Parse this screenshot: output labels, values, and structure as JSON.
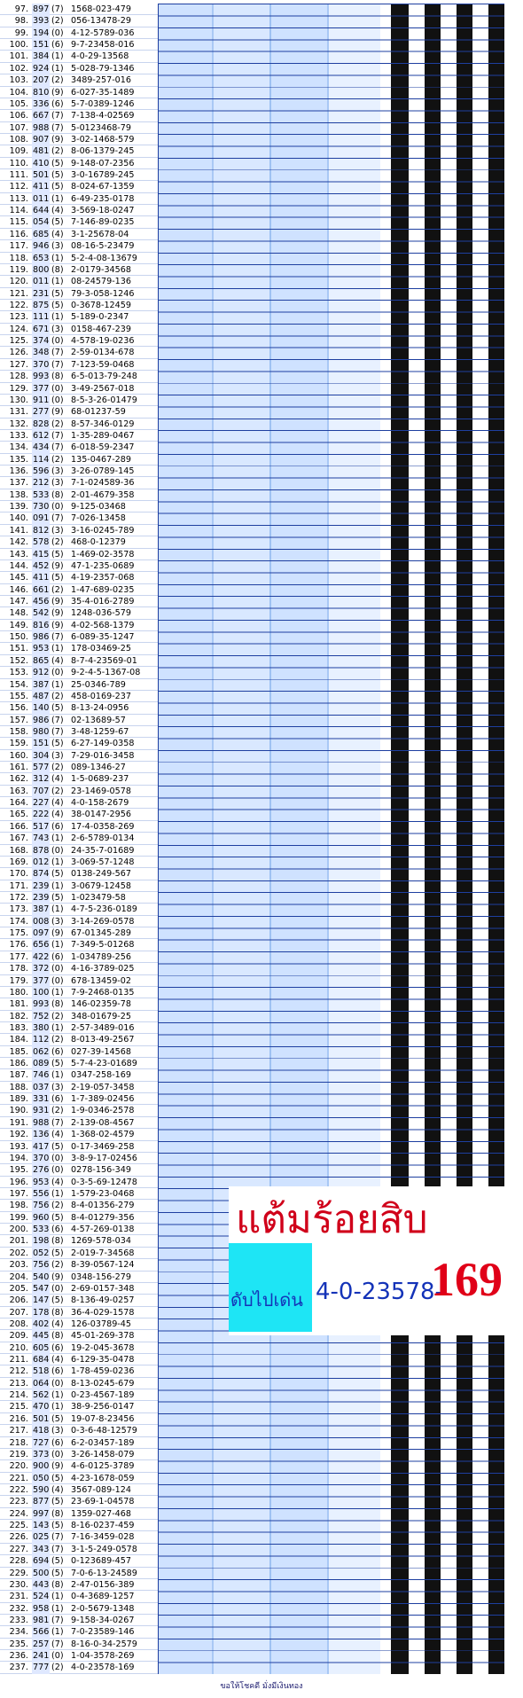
{
  "rows": [
    [
      "97.",
      "897",
      "(7)",
      "1568-023-479"
    ],
    [
      "98.",
      "393",
      "(2)",
      "056-13478-29"
    ],
    [
      "99.",
      "194",
      "(0)",
      "4-12-5789-036"
    ],
    [
      "100.",
      "151",
      "(6)",
      "9-7-23458-016"
    ],
    [
      "101.",
      "384",
      "(1)",
      "4-0-29-13568"
    ],
    [
      "102.",
      "924",
      "(1)",
      "5-028-79-1346"
    ],
    [
      "103.",
      "207",
      "(2)",
      "3489-257-016"
    ],
    [
      "104.",
      "810",
      "(9)",
      "6-027-35-1489"
    ],
    [
      "105.",
      "336",
      "(6)",
      "5-7-0389-1246"
    ],
    [
      "106.",
      "667",
      "(7)",
      "7-138-4-02569"
    ],
    [
      "107.",
      "988",
      "(7)",
      "5-0123468-79"
    ],
    [
      "108.",
      "907",
      "(9)",
      "3-02-1468-579"
    ],
    [
      "109.",
      "481",
      "(2)",
      "8-06-1379-245"
    ],
    [
      "110.",
      "410",
      "(5)",
      "9-148-07-2356"
    ],
    [
      "111.",
      "501",
      "(5)",
      "3-0-16789-245"
    ],
    [
      "112.",
      "411",
      "(5)",
      "8-024-67-1359"
    ],
    [
      "113.",
      "011",
      "(1)",
      "6-49-235-0178"
    ],
    [
      "114.",
      "644",
      "(4)",
      "3-569-18-0247"
    ],
    [
      "115.",
      "054",
      "(5)",
      "7-146-89-0235"
    ],
    [
      "116.",
      "685",
      "(4)",
      "3-1-25678-04"
    ],
    [
      "117.",
      "946",
      "(3)",
      "08-16-5-23479"
    ],
    [
      "118.",
      "653",
      "(1)",
      "5-2-4-08-13679"
    ],
    [
      "119.",
      "800",
      "(8)",
      "2-0179-34568"
    ],
    [
      "120.",
      "011",
      "(1)",
      "08-24579-136"
    ],
    [
      "121.",
      "231",
      "(5)",
      "79-3-058-1246"
    ],
    [
      "122.",
      "875",
      "(5)",
      "0-3678-12459"
    ],
    [
      "123.",
      "111",
      "(1)",
      "5-189-0-2347"
    ],
    [
      "124.",
      "671",
      "(3)",
      "0158-467-239"
    ],
    [
      "125.",
      "374",
      "(0)",
      "4-578-19-0236"
    ],
    [
      "126.",
      "348",
      "(7)",
      "2-59-0134-678"
    ],
    [
      "127.",
      "370",
      "(7)",
      "7-123-59-0468"
    ],
    [
      "128.",
      "993",
      "(8)",
      "6-5-013-79-248"
    ],
    [
      "129.",
      "377",
      "(0)",
      "3-49-2567-018"
    ],
    [
      "130.",
      "911",
      "(0)",
      "8-5-3-26-01479"
    ],
    [
      "131.",
      "277",
      "(9)",
      "68-01237-59"
    ],
    [
      "132.",
      "828",
      "(2)",
      "8-57-346-0129"
    ],
    [
      "133.",
      "612",
      "(7)",
      "1-35-289-0467"
    ],
    [
      "134.",
      "434",
      "(7)",
      "6-018-59-2347"
    ],
    [
      "135.",
      "114",
      "(2)",
      "135-0467-289"
    ],
    [
      "136.",
      "596",
      "(3)",
      "3-26-0789-145"
    ],
    [
      "137.",
      "212",
      "(3)",
      "7-1-024589-36"
    ],
    [
      "138.",
      "533",
      "(8)",
      "2-01-4679-358"
    ],
    [
      "139.",
      "730",
      "(0)",
      "9-125-03468"
    ],
    [
      "140.",
      "091",
      "(7)",
      "7-026-13458"
    ],
    [
      "141.",
      "812",
      "(3)",
      "3-16-0245-789"
    ],
    [
      "142.",
      "578",
      "(2)",
      "468-0-12379"
    ],
    [
      "143.",
      "415",
      "(5)",
      "1-469-02-3578"
    ],
    [
      "144.",
      "452",
      "(9)",
      "47-1-235-0689"
    ],
    [
      "145.",
      "411",
      "(5)",
      "4-19-2357-068"
    ],
    [
      "146.",
      "661",
      "(2)",
      "1-47-689-0235"
    ],
    [
      "147.",
      "456",
      "(9)",
      "35-4-016-2789"
    ],
    [
      "148.",
      "542",
      "(9)",
      "1248-036-579"
    ],
    [
      "149.",
      "816",
      "(9)",
      "4-02-568-1379"
    ],
    [
      "150.",
      "986",
      "(7)",
      "6-089-35-1247"
    ],
    [
      "151.",
      "953",
      "(1)",
      "178-03469-25"
    ],
    [
      "152.",
      "865",
      "(4)",
      "8-7-4-23569-01"
    ],
    [
      "153.",
      "912",
      "(0)",
      "9-2-4-5-1367-08"
    ],
    [
      "154.",
      "387",
      "(1)",
      "25-0346-789"
    ],
    [
      "155.",
      "487",
      "(2)",
      "458-0169-237"
    ],
    [
      "156.",
      "140",
      "(5)",
      "8-13-24-0956"
    ],
    [
      "157.",
      "986",
      "(7)",
      "02-13689-57"
    ],
    [
      "158.",
      "980",
      "(7)",
      "3-48-1259-67"
    ],
    [
      "159.",
      "151",
      "(5)",
      "6-27-149-0358"
    ],
    [
      "160.",
      "304",
      "(3)",
      "7-29-016-3458"
    ],
    [
      "161.",
      "577",
      "(2)",
      "089-1346-27"
    ],
    [
      "162.",
      "312",
      "(4)",
      "1-5-0689-237"
    ],
    [
      "163.",
      "707",
      "(2)",
      "23-1469-0578"
    ],
    [
      "164.",
      "227",
      "(4)",
      "4-0-158-2679"
    ],
    [
      "165.",
      "222",
      "(4)",
      "38-0147-2956"
    ],
    [
      "166.",
      "517",
      "(6)",
      "17-4-0358-269"
    ],
    [
      "167.",
      "743",
      "(1)",
      "2-6-5789-0134"
    ],
    [
      "168.",
      "878",
      "(0)",
      "24-35-7-01689"
    ],
    [
      "169.",
      "012",
      "(1)",
      "3-069-57-1248"
    ],
    [
      "170.",
      "874",
      "(5)",
      "0138-249-567"
    ],
    [
      "171.",
      "239",
      "(1)",
      "3-0679-12458"
    ],
    [
      "172.",
      "239",
      "(5)",
      "1-023479-58"
    ],
    [
      "173.",
      "387",
      "(1)",
      "4-7-5-236-0189"
    ],
    [
      "174.",
      "008",
      "(3)",
      "3-14-269-0578"
    ],
    [
      "175.",
      "097",
      "(9)",
      "67-01345-289"
    ],
    [
      "176.",
      "656",
      "(1)",
      "7-349-5-01268"
    ],
    [
      "177.",
      "422",
      "(6)",
      "1-034789-256"
    ],
    [
      "178.",
      "372",
      "(0)",
      "4-16-3789-025"
    ],
    [
      "179.",
      "377",
      "(0)",
      "678-13459-02"
    ],
    [
      "180.",
      "100",
      "(1)",
      "7-9-2468-0135"
    ],
    [
      "181.",
      "993",
      "(8)",
      "146-02359-78"
    ],
    [
      "182.",
      "752",
      "(2)",
      "348-01679-25"
    ],
    [
      "183.",
      "380",
      "(1)",
      "2-57-3489-016"
    ],
    [
      "184.",
      "112",
      "(2)",
      "8-013-49-2567"
    ],
    [
      "185.",
      "062",
      "(6)",
      "027-39-14568"
    ],
    [
      "186.",
      "089",
      "(5)",
      "5-7-4-23-01689"
    ],
    [
      "187.",
      "746",
      "(1)",
      "0347-258-169"
    ],
    [
      "188.",
      "037",
      "(3)",
      "2-19-057-3458"
    ],
    [
      "189.",
      "331",
      "(6)",
      "1-7-389-02456"
    ],
    [
      "190.",
      "931",
      "(2)",
      "1-9-0346-2578"
    ],
    [
      "191.",
      "988",
      "(7)",
      "2-139-08-4567"
    ],
    [
      "192.",
      "136",
      "(4)",
      "1-368-02-4579"
    ],
    [
      "193.",
      "417",
      "(5)",
      "0-17-3469-258"
    ],
    [
      "194.",
      "370",
      "(0)",
      "3-8-9-17-02456"
    ],
    [
      "195.",
      "276",
      "(0)",
      "0278-156-349"
    ],
    [
      "196.",
      "953",
      "(4)",
      "0-3-5-69-12478"
    ],
    [
      "197.",
      "556",
      "(1)",
      "1-579-23-0468"
    ],
    [
      "198.",
      "756",
      "(2)",
      "8-4-01356-279"
    ],
    [
      "199.",
      "960",
      "(5)",
      "8-4-01279-356"
    ],
    [
      "200.",
      "533",
      "(6)",
      "4-57-269-0138"
    ],
    [
      "201.",
      "198",
      "(8)",
      "1269-578-034"
    ],
    [
      "202.",
      "052",
      "(5)",
      "2-019-7-34568"
    ],
    [
      "203.",
      "756",
      "(2)",
      "8-39-0567-124"
    ],
    [
      "204.",
      "540",
      "(9)",
      "0348-156-279"
    ],
    [
      "205.",
      "547",
      "(0)",
      "2-69-0157-348"
    ],
    [
      "206.",
      "147",
      "(5)",
      "8-136-49-0257"
    ],
    [
      "207.",
      "178",
      "(8)",
      "36-4-029-1578"
    ],
    [
      "208.",
      "402",
      "(4)",
      "126-03789-45"
    ],
    [
      "209.",
      "445",
      "(8)",
      "45-01-269-378"
    ],
    [
      "210.",
      "605",
      "(6)",
      "19-2-045-3678"
    ],
    [
      "211.",
      "684",
      "(4)",
      "6-129-35-0478"
    ],
    [
      "212.",
      "518",
      "(6)",
      "1-78-459-0236"
    ],
    [
      "213.",
      "064",
      "(0)",
      "8-13-0245-679"
    ],
    [
      "214.",
      "562",
      "(1)",
      "0-23-4567-189"
    ],
    [
      "215.",
      "470",
      "(1)",
      "38-9-256-0147"
    ],
    [
      "216.",
      "501",
      "(5)",
      "19-07-8-23456"
    ],
    [
      "217.",
      "418",
      "(3)",
      "0-3-6-48-12579"
    ],
    [
      "218.",
      "727",
      "(6)",
      "6-2-03457-189"
    ],
    [
      "219.",
      "373",
      "(0)",
      "3-26-1458-079"
    ],
    [
      "220.",
      "900",
      "(9)",
      "4-6-0125-3789"
    ],
    [
      "221.",
      "050",
      "(5)",
      "4-23-1678-059"
    ],
    [
      "222.",
      "590",
      "(4)",
      "3567-089-124"
    ],
    [
      "223.",
      "877",
      "(5)",
      "23-69-1-04578"
    ],
    [
      "224.",
      "997",
      "(8)",
      "1359-027-468"
    ],
    [
      "225.",
      "143",
      "(5)",
      "8-16-0237-459"
    ],
    [
      "226.",
      "025",
      "(7)",
      "7-16-3459-028"
    ],
    [
      "227.",
      "343",
      "(7)",
      "3-1-5-249-0578"
    ],
    [
      "228.",
      "694",
      "(5)",
      "0-123689-457"
    ],
    [
      "229.",
      "500",
      "(5)",
      "7-0-6-13-24589"
    ],
    [
      "230.",
      "443",
      "(8)",
      "2-47-0156-389"
    ],
    [
      "231.",
      "524",
      "(1)",
      "0-4-3689-1257"
    ],
    [
      "232.",
      "958",
      "(1)",
      "2-0-5679-1348"
    ],
    [
      "233.",
      "981",
      "(7)",
      "9-158-34-0267"
    ],
    [
      "234.",
      "566",
      "(1)",
      "7-0-23589-146"
    ],
    [
      "235.",
      "257",
      "(7)",
      "8-16-0-34-2579"
    ],
    [
      "236.",
      "241",
      "(0)",
      "1-04-3578-269"
    ],
    [
      "237.",
      "777",
      "(2)",
      "4-0-23578-169"
    ]
  ],
  "banner": {
    "title": "แต้มร้อยสิบ",
    "label": "ดับไปเด่น",
    "set": "4-0-23578-",
    "tail": "169"
  },
  "footer": "ขอให้โชคดี มั่งมีเงินทอง"
}
